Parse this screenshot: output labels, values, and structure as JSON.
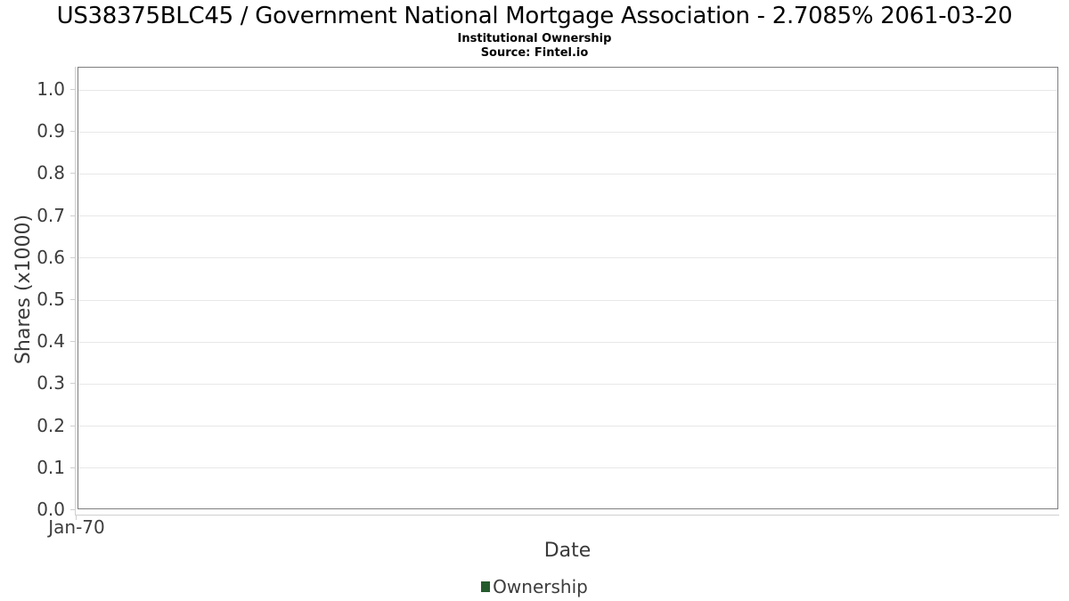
{
  "chart_data": {
    "type": "bar",
    "title": "US38375BLC45 / Government National Mortgage Association - 2.7085% 2061-03-20",
    "subtitle": "Institutional Ownership",
    "source": "Source: Fintel.io",
    "xlabel": "Date",
    "ylabel": "Shares (x1000)",
    "x_tick_labels": [
      "Jan-70"
    ],
    "y_tick_labels": [
      "0.0",
      "0.1",
      "0.2",
      "0.3",
      "0.4",
      "0.5",
      "0.6",
      "0.7",
      "0.8",
      "0.9",
      "1.0"
    ],
    "ylim": [
      0.0,
      1.05
    ],
    "grid": "horizontal",
    "legend_position": "bottom-center",
    "series": [
      {
        "name": "Ownership",
        "color": "#255c2e",
        "x": [],
        "values": []
      }
    ],
    "colors": {
      "plot_border": "#7e7e7e",
      "gridline": "#e8e8e8",
      "axis_domain": "#cfcfcf",
      "tick_text": "#3d3d3d",
      "title_text": "#000000"
    }
  }
}
